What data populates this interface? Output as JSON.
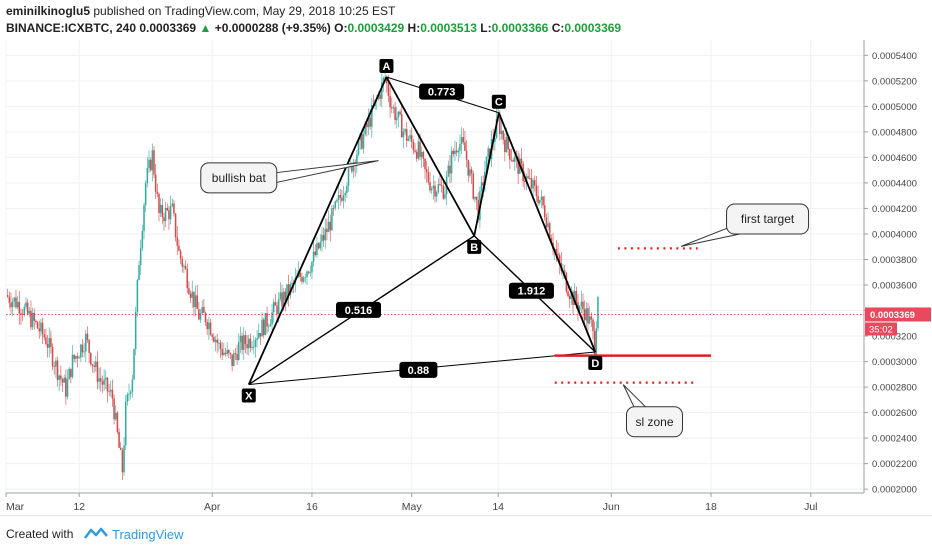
{
  "header": {
    "line1": {
      "author": "eminilkinoglu5",
      "text": " published on TradingView.com, May 29, 2018 10:25 EST"
    },
    "line2": {
      "symbol": "BINANCE:ICXBTC, 240",
      "price": "0.0003369",
      "change": "+0.0000288 (+9.35%)",
      "o_label": "O:",
      "o_value": "0.0003429",
      "h_label": "H:",
      "h_value": "0.0003513",
      "l_label": "L:",
      "l_value": "0.0003366",
      "c_label": "C:",
      "c_value": "0.0003369"
    }
  },
  "footer": {
    "created_with": "Created with",
    "brand": "TradingView"
  },
  "chart_data": {
    "type": "candlestick",
    "y_tick_labels": [
      "0.0002000",
      "0.0002200",
      "0.0002400",
      "0.0002600",
      "0.0002800",
      "0.0003000",
      "0.0003200",
      "0.0003400",
      "0.0003600",
      "0.0003800",
      "0.0004000",
      "0.0004200",
      "0.0004400",
      "0.0004600",
      "0.0004800",
      "0.0005000",
      "0.0005200",
      "0.0005400"
    ],
    "y_tick_values": [
      0.0002,
      0.00022,
      0.00024,
      0.00026,
      0.00028,
      0.0003,
      0.00032,
      0.00034,
      0.00036,
      0.00038,
      0.0004,
      0.00042,
      0.00044,
      0.00046,
      0.00048,
      0.0005,
      0.00052,
      0.00054
    ],
    "ylim": [
      0.000197,
      0.000552
    ],
    "x_tick_labels": [
      "Mar",
      "12",
      "Apr",
      "16",
      "May",
      "14",
      "Jun",
      "18",
      "Jul"
    ],
    "x_tick_days": [
      0,
      11,
      31,
      46,
      61,
      74,
      91,
      106,
      121
    ],
    "xlim": [
      0,
      129
    ],
    "current_price": {
      "label": "0.0003369",
      "value": 0.0003369,
      "countdown": "35:02"
    },
    "candle_path": [
      [
        0,
        0.000352
      ],
      [
        2,
        0.000345
      ],
      [
        4,
        0.000332
      ],
      [
        6,
        0.000318
      ],
      [
        8,
        0.00029
      ],
      [
        9,
        0.000278
      ],
      [
        10,
        0.0003
      ],
      [
        12,
        0.000318
      ],
      [
        13,
        0.0003
      ],
      [
        14,
        0.000287
      ],
      [
        16,
        0.000272
      ],
      [
        17,
        0.000232
      ],
      [
        17.5,
        0.000215
      ],
      [
        18,
        0.000262
      ],
      [
        19,
        0.00029
      ],
      [
        20,
        0.00038
      ],
      [
        21,
        0.00044
      ],
      [
        22,
        0.000462
      ],
      [
        23,
        0.000415
      ],
      [
        25,
        0.000418
      ],
      [
        26,
        0.000385
      ],
      [
        27,
        0.00037
      ],
      [
        28,
        0.000352
      ],
      [
        29,
        0.000336
      ],
      [
        30,
        0.000335
      ],
      [
        31,
        0.000325
      ],
      [
        32,
        0.000312
      ],
      [
        34,
        0.0003
      ],
      [
        35,
        0.000312
      ],
      [
        37,
        0.000318
      ],
      [
        39,
        0.00033
      ],
      [
        41,
        0.000345
      ],
      [
        44,
        0.000365
      ],
      [
        46,
        0.000378
      ],
      [
        48,
        0.0004
      ],
      [
        50,
        0.000425
      ],
      [
        52,
        0.000455
      ],
      [
        54,
        0.00048
      ],
      [
        56,
        0.000508
      ],
      [
        57,
        0.000523
      ],
      [
        58,
        0.0005
      ],
      [
        60,
        0.000478
      ],
      [
        62,
        0.000465
      ],
      [
        63,
        0.000448
      ],
      [
        64,
        0.000438
      ],
      [
        66,
        0.000435
      ],
      [
        67,
        0.00046
      ],
      [
        68,
        0.000473
      ],
      [
        69,
        0.000465
      ],
      [
        70,
        0.00044
      ],
      [
        71,
        0.000418
      ],
      [
        72,
        0.00045
      ],
      [
        73,
        0.00047
      ],
      [
        74,
        0.000488
      ],
      [
        75,
        0.000472
      ],
      [
        76,
        0.000462
      ],
      [
        78,
        0.000445
      ],
      [
        80,
        0.00043
      ],
      [
        81,
        0.000418
      ],
      [
        82,
        0.000398
      ],
      [
        83,
        0.000378
      ],
      [
        84,
        0.000365
      ],
      [
        85,
        0.000352
      ],
      [
        86,
        0.000345
      ],
      [
        87,
        0.00034
      ],
      [
        88,
        0.000328
      ],
      [
        88.5,
        0.000312
      ],
      [
        89,
        0.000355
      ]
    ],
    "pattern_points": [
      {
        "label": "X",
        "day": 36.5,
        "price": 0.000282
      },
      {
        "label": "A",
        "day": 57.2,
        "price": 0.000523
      },
      {
        "label": "B",
        "day": 70.4,
        "price": 0.0003985
      },
      {
        "label": "C",
        "day": 74.1,
        "price": 0.000495
      },
      {
        "label": "D",
        "day": 88.6,
        "price": 0.0003075
      }
    ],
    "ratio_labels": [
      {
        "text": "0.773",
        "day": 65.5,
        "price": 0.0005115
      },
      {
        "text": "0.516",
        "day": 53.0,
        "price": 0.0003405
      },
      {
        "text": "1.912",
        "day": 79.0,
        "price": 0.0003555
      },
      {
        "text": "0.88",
        "day": 62.0,
        "price": 0.0002935
      }
    ],
    "levels": [
      {
        "name": "first-target-line",
        "from_day": 92,
        "to_day": 104,
        "price": 0.0003887,
        "style": "dotted",
        "color": "#e02020"
      },
      {
        "name": "entry-line",
        "from_day": 82.5,
        "to_day": 106,
        "price": 0.0003047,
        "style": "solid",
        "color": "#e02020"
      },
      {
        "name": "sl-zone-line",
        "from_day": 82.5,
        "to_day": 104,
        "price": 0.0002835,
        "style": "dotted",
        "color": "#e02020"
      }
    ],
    "callouts": [
      {
        "text": "bullish bat",
        "day": 35,
        "price": 0.000444
      },
      {
        "text": "first target",
        "day": 114.5,
        "price": 0.0004117
      },
      {
        "text": "sl zone",
        "day": 97.5,
        "price": 0.0002528
      }
    ],
    "colors": {
      "up": "#26a69a",
      "down": "#d04040",
      "pattern": "#000000",
      "price_line": "#e02020",
      "price_label": "#e8495d"
    }
  }
}
